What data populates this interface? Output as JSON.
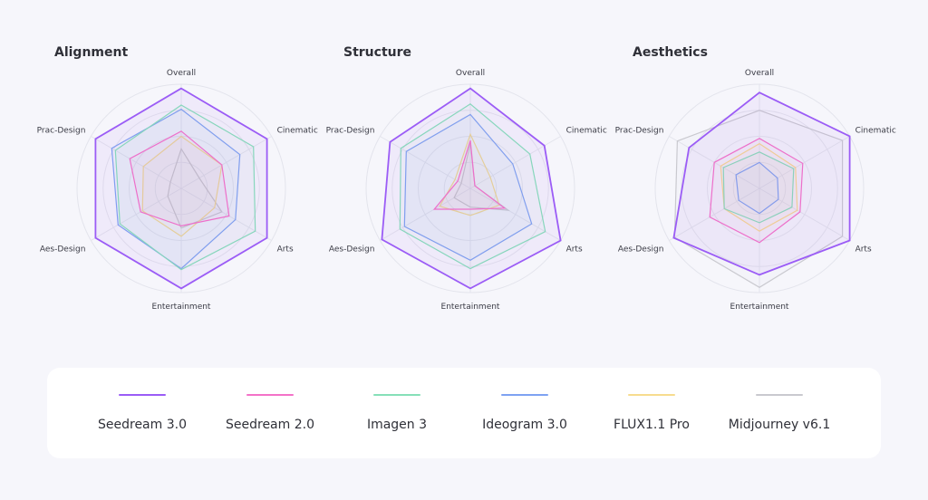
{
  "legend": [
    {
      "name": "Seedream 3.0",
      "color": "#9b5cf6"
    },
    {
      "name": "Seedream 2.0",
      "color": "#f472c8"
    },
    {
      "name": "Imagen 3",
      "color": "#86e0b8"
    },
    {
      "name": "Ideogram 3.0",
      "color": "#7ea2f2"
    },
    {
      "name": "FLUX1.1 Pro",
      "color": "#f7dc8f"
    },
    {
      "name": "Midjourney v6.1",
      "color": "#c9c9cf"
    }
  ],
  "chart_data": [
    {
      "type": "radar",
      "title": "Alignment",
      "axes": [
        "Overall",
        "Cinematic",
        "Arts",
        "Entertainment",
        "Aes-Design",
        "Prac-Design"
      ],
      "range": [
        0,
        1
      ],
      "series": [
        {
          "name": "Seedream 3.0",
          "values": [
            0.96,
            0.95,
            0.95,
            0.96,
            0.95,
            0.95
          ]
        },
        {
          "name": "Seedream 2.0",
          "values": [
            0.55,
            0.45,
            0.53,
            0.36,
            0.45,
            0.57
          ]
        },
        {
          "name": "Imagen 3",
          "values": [
            0.8,
            0.8,
            0.82,
            0.78,
            0.68,
            0.73
          ]
        },
        {
          "name": "Ideogram 3.0",
          "values": [
            0.76,
            0.65,
            0.6,
            0.77,
            0.7,
            0.77
          ]
        },
        {
          "name": "FLUX1.1 Pro",
          "values": [
            0.5,
            0.45,
            0.37,
            0.46,
            0.43,
            0.42
          ]
        },
        {
          "name": "Midjourney v6.1",
          "values": [
            0.38,
            0.2,
            0.45,
            0.38,
            0.15,
            0.12
          ]
        }
      ]
    },
    {
      "type": "radar",
      "title": "Structure",
      "axes": [
        "Overall",
        "Cinematic",
        "Arts",
        "Entertainment",
        "Aes-Design",
        "Prac-Design"
      ],
      "range": [
        0,
        1
      ],
      "series": [
        {
          "name": "Seedream 3.0",
          "values": [
            0.96,
            0.82,
            1.0,
            0.96,
            0.98,
            0.89
          ]
        },
        {
          "name": "Seedream 2.0",
          "values": [
            0.46,
            0.05,
            0.38,
            0.2,
            0.4,
            0.14
          ]
        },
        {
          "name": "Imagen 3",
          "values": [
            0.81,
            0.66,
            0.83,
            0.77,
            0.78,
            0.77
          ]
        },
        {
          "name": "Ideogram 3.0",
          "values": [
            0.71,
            0.47,
            0.68,
            0.69,
            0.73,
            0.71
          ]
        },
        {
          "name": "FLUX1.1 Pro",
          "values": [
            0.52,
            0.22,
            0.32,
            0.26,
            0.34,
            0.17
          ]
        },
        {
          "name": "Midjourney v6.1",
          "values": [
            0.43,
            0.05,
            0.42,
            0.18,
            0.18,
            0.1
          ]
        }
      ]
    },
    {
      "type": "radar",
      "title": "Aesthetics",
      "axes": [
        "Overall",
        "Cinematic",
        "Arts",
        "Entertainment",
        "Aes-Design",
        "Prac-Design"
      ],
      "range": [
        0,
        1
      ],
      "series": [
        {
          "name": "Seedream 3.0",
          "values": [
            0.92,
            1.0,
            1.0,
            0.83,
            0.95,
            0.78
          ]
        },
        {
          "name": "Seedream 2.0",
          "values": [
            0.48,
            0.48,
            0.45,
            0.52,
            0.55,
            0.5
          ]
        },
        {
          "name": "Imagen 3",
          "values": [
            0.35,
            0.38,
            0.36,
            0.33,
            0.39,
            0.4
          ]
        },
        {
          "name": "Ideogram 3.0",
          "values": [
            0.25,
            0.2,
            0.21,
            0.24,
            0.23,
            0.26
          ]
        },
        {
          "name": "FLUX1.1 Pro",
          "values": [
            0.43,
            0.4,
            0.42,
            0.41,
            0.39,
            0.43
          ]
        },
        {
          "name": "Midjourney v6.1",
          "values": [
            0.75,
            0.92,
            0.92,
            0.95,
            0.94,
            0.91
          ]
        }
      ]
    }
  ]
}
